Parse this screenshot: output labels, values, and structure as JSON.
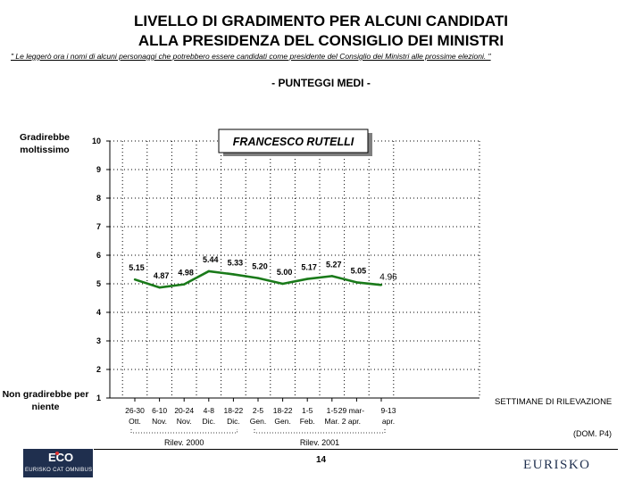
{
  "header": {
    "title_line1": "LIVELLO DI GRADIMENTO PER ALCUNI CANDIDATI",
    "title_line2": "ALLA PRESIDENZA DEL CONSIGLIO DEI MINISTRI",
    "question": "\" Le leggerò ora i nomi di alcuni personaggi che potrebbero essere candidati come presidente del Consiglio dei Ministri alle prossime elezioni. \"",
    "subtitle": "- PUNTEGGI MEDI -"
  },
  "chart_data": {
    "type": "line",
    "title": "FRANCESCO RUTELLI",
    "categories": [
      [
        "26-30",
        "Ott."
      ],
      [
        "6-10",
        "Nov."
      ],
      [
        "20-24",
        "Nov."
      ],
      [
        "4-8",
        "Dic."
      ],
      [
        "18-22",
        "Dic."
      ],
      [
        "2-5",
        "Gen."
      ],
      [
        "18-22",
        "Gen."
      ],
      [
        "1-5",
        "Feb."
      ],
      [
        "1-5",
        "Mar."
      ],
      [
        "29 mar-",
        "2 apr."
      ],
      [
        "9-13",
        "apr."
      ]
    ],
    "values": [
      5.15,
      4.87,
      4.98,
      5.44,
      5.33,
      5.2,
      5.0,
      5.17,
      5.27,
      5.05,
      4.96
    ],
    "data_labels": [
      "5.15",
      "4.87",
      "4.98",
      "5.44",
      "5.33",
      "5.20",
      "5.00",
      "5.17",
      "5.27",
      "5.05",
      "4.96"
    ],
    "ylim": [
      1,
      10
    ],
    "yticks": [
      "1",
      "2",
      "3",
      "4",
      "5",
      "6",
      "7",
      "8",
      "9",
      "10"
    ],
    "y_top_label": "Gradirebbe moltissimo",
    "y_bottom_label": "Non gradirebbe per niente",
    "xlabel": "SETTIMANE DI RILEVAZIONE",
    "groups": [
      {
        "label": "Rilev. 2000",
        "from": 0,
        "to": 4
      },
      {
        "label": "Rilev. 2001",
        "from": 5,
        "to": 10
      }
    ],
    "grid": true,
    "line_color": "#1a7a1a"
  },
  "footer": {
    "code": "(DOM. P4)",
    "page_number": "14",
    "logo_left_mark": "ECO",
    "logo_left_text": "EURISKO CAT OMNIBUS",
    "logo_right": "EURISKO"
  }
}
